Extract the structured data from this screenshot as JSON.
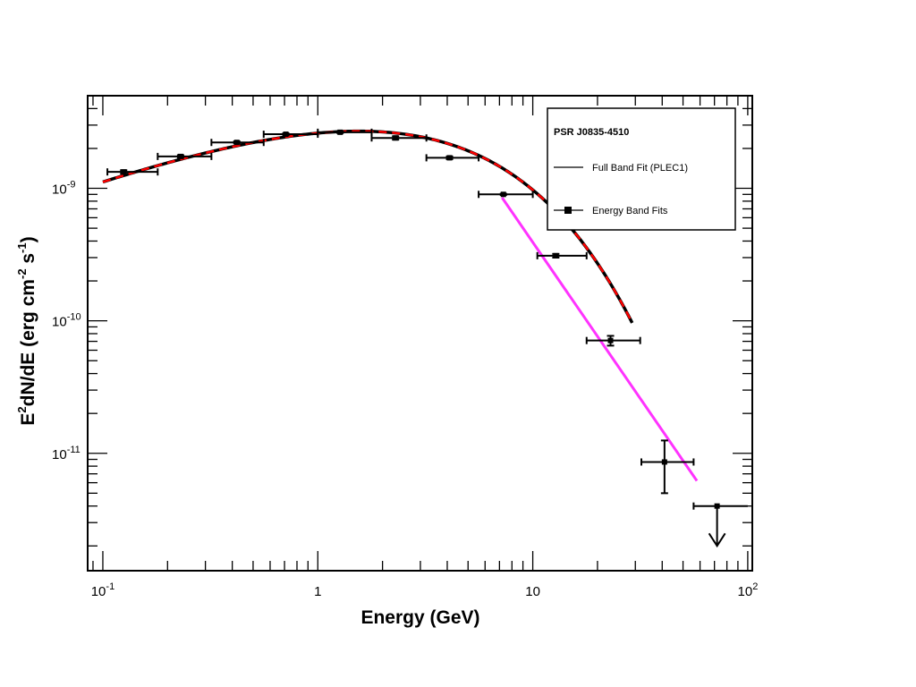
{
  "chart_data": {
    "type": "scatter",
    "title": "",
    "xlabel": "Energy (GeV)",
    "ylabel_parts": [
      "E",
      "2",
      "dN/dE (erg cm",
      "-2",
      " s",
      "-1",
      ")"
    ],
    "xscale": "log",
    "yscale": "log",
    "xlim": [
      0.085,
      105
    ],
    "ylim": [
      1.3e-12,
      5e-09
    ],
    "x_ticks": [
      {
        "value": 0.1,
        "base": "10",
        "exp": "-1"
      },
      {
        "value": 1,
        "base": "1",
        "exp": ""
      },
      {
        "value": 10,
        "base": "10",
        "exp": ""
      },
      {
        "value": 100,
        "base": "10",
        "exp": "2"
      }
    ],
    "y_ticks": [
      {
        "value": 1e-11,
        "base": "10",
        "exp": "-11"
      },
      {
        "value": 1e-10,
        "base": "10",
        "exp": "-10"
      },
      {
        "value": 1e-09,
        "base": "10",
        "exp": "-9"
      }
    ],
    "legend": {
      "title": "PSR J0835-4510",
      "entries": [
        "Full Band Fit (PLEC1)",
        "Energy Band Fits"
      ],
      "placement": "top-right"
    },
    "plec1": {
      "norm": 2.7e-09,
      "index": 1.38,
      "cutoff_gev": 1.55,
      "b": 0.62,
      "x_range": [
        0.1,
        29
      ]
    },
    "powerlaw": {
      "x": [
        7.2,
        58
      ],
      "y": [
        8.5e-10,
        6.2e-12
      ]
    },
    "series": [
      {
        "name": "Energy Band Fits",
        "points": [
          {
            "x": 0.125,
            "y": 1.33e-09,
            "xlo": 0.105,
            "xhi": 0.18,
            "ylo": 1.29e-09,
            "yhi": 1.37e-09
          },
          {
            "x": 0.23,
            "y": 1.74e-09,
            "xlo": 0.18,
            "xhi": 0.32,
            "ylo": 1.7e-09,
            "yhi": 1.78e-09
          },
          {
            "x": 0.42,
            "y": 2.22e-09,
            "xlo": 0.32,
            "xhi": 0.56,
            "ylo": 2.18e-09,
            "yhi": 2.26e-09
          },
          {
            "x": 0.71,
            "y": 2.56e-09,
            "xlo": 0.56,
            "xhi": 1.0,
            "ylo": 2.52e-09,
            "yhi": 2.6e-09
          },
          {
            "x": 1.27,
            "y": 2.65e-09,
            "xlo": 1.0,
            "xhi": 1.78,
            "ylo": 2.61e-09,
            "yhi": 2.69e-09
          },
          {
            "x": 2.3,
            "y": 2.4e-09,
            "xlo": 1.78,
            "xhi": 3.2,
            "ylo": 2.33e-09,
            "yhi": 2.47e-09
          },
          {
            "x": 4.1,
            "y": 1.7e-09,
            "xlo": 3.2,
            "xhi": 5.6,
            "ylo": 1.66e-09,
            "yhi": 1.74e-09
          },
          {
            "x": 7.3,
            "y": 9e-10,
            "xlo": 5.6,
            "xhi": 10.0,
            "ylo": 8.9e-10,
            "yhi": 9.1e-10
          },
          {
            "x": 12.8,
            "y": 3.1e-10,
            "xlo": 10.5,
            "xhi": 17.8,
            "ylo": 3e-10,
            "yhi": 3.2e-10
          },
          {
            "x": 23.0,
            "y": 7.1e-11,
            "xlo": 17.8,
            "xhi": 31.6,
            "ylo": 6.5e-11,
            "yhi": 7.7e-11
          },
          {
            "x": 41.0,
            "y": 8.6e-12,
            "xlo": 32.0,
            "xhi": 56.0,
            "ylo": 5e-12,
            "yhi": 1.25e-11
          }
        ]
      }
    ],
    "upper_limit": {
      "x": 72.0,
      "y": 4e-12,
      "xlo": 56.0,
      "xhi": 100.0,
      "arrow_to": 2e-12
    },
    "colors": {
      "data": "#000000",
      "plec1_line": "#000000",
      "plec1_dash": "#ff0000",
      "powerlaw": "#ff33ff"
    }
  }
}
